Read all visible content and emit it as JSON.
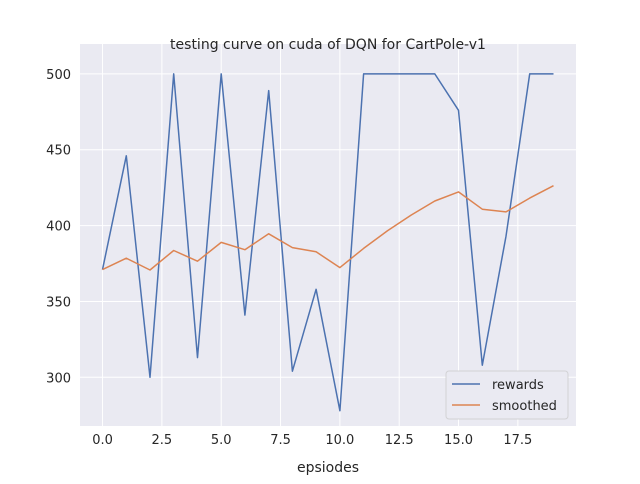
{
  "chart_data": {
    "type": "line",
    "title": "testing curve on cuda of DQN for CartPole-v1",
    "xlabel": "epsiodes",
    "ylabel": "",
    "xlim": [
      -0.95,
      19.95
    ],
    "ylim": [
      267.9,
      519.7
    ],
    "xticks": [
      0.0,
      2.5,
      5.0,
      7.5,
      10.0,
      12.5,
      15.0,
      17.5
    ],
    "xtick_labels": [
      "0.0",
      "2.5",
      "5.0",
      "7.5",
      "10.0",
      "12.5",
      "15.0",
      "17.5"
    ],
    "yticks": [
      300,
      350,
      400,
      450,
      500
    ],
    "ytick_labels": [
      "300",
      "350",
      "400",
      "450",
      "500"
    ],
    "grid": true,
    "legend_position": "bottom-right",
    "background": "#eaeaf2",
    "x": [
      0,
      1,
      2,
      3,
      4,
      5,
      6,
      7,
      8,
      9,
      10,
      11,
      12,
      13,
      14,
      15,
      16,
      17,
      18,
      19
    ],
    "series": [
      {
        "name": "rewards",
        "color": "#4c72b0",
        "values": [
          371,
          446,
          300,
          500,
          313,
          500,
          341,
          489,
          304,
          358,
          278,
          500,
          500,
          500,
          500,
          476,
          308,
          393,
          500,
          500
        ]
      },
      {
        "name": "smoothed",
        "color": "#dd8452",
        "values": [
          371,
          378.5,
          370.7,
          383.6,
          376.5,
          388.9,
          384.1,
          394.6,
          385.5,
          382.7,
          372.3,
          385.0,
          396.5,
          406.9,
          416.2,
          422.2,
          410.8,
          409.0,
          418.1,
          426.3
        ]
      }
    ]
  }
}
